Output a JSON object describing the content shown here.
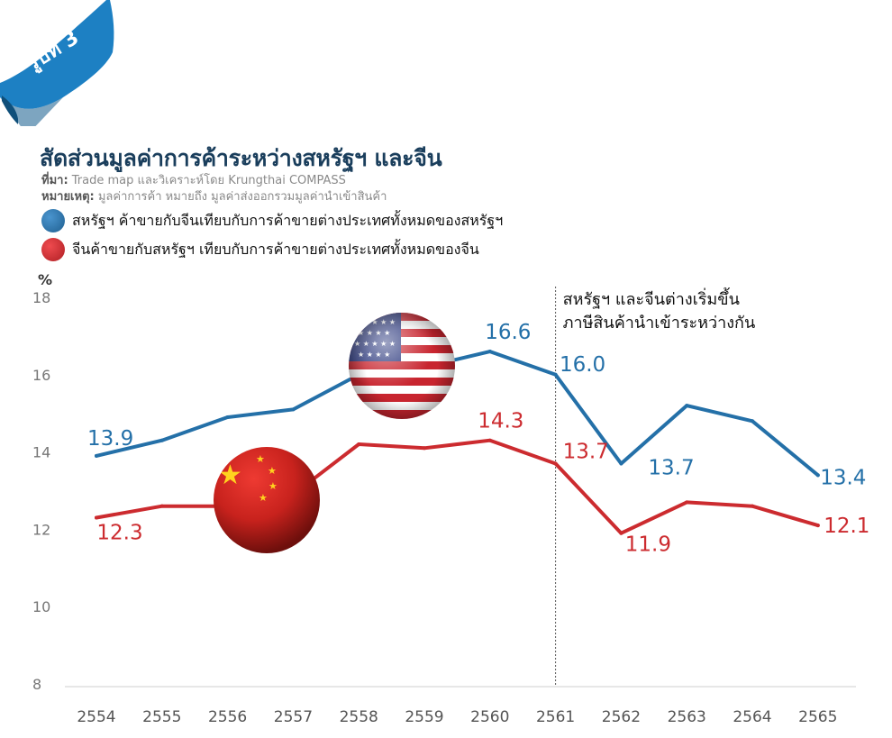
{
  "badge": {
    "label": "รูปที่ 3"
  },
  "header": {
    "title": "สัดส่วนมูลค่าการค้าระหว่างสหรัฐฯ และจีน",
    "source_label": "ที่มา:",
    "source_text": "Trade map และวิเคราะห์โดย Krungthai COMPASS",
    "note_label": "หมายเหตุ:",
    "note_text": "มูลค่าการค้า หมายถึง มูลค่าส่งออกรวมมูลค่านำเข้าสินค้า"
  },
  "colors": {
    "us": "#2470a8",
    "china": "#cc2b2f",
    "badge": "#1d80c3",
    "axis_text": "#777777"
  },
  "chart_data": {
    "type": "line",
    "x": [
      "2554",
      "2555",
      "2556",
      "2557",
      "2558",
      "2559",
      "2560",
      "2561",
      "2562",
      "2563",
      "2564",
      "2565"
    ],
    "ylabel": "%",
    "ylim": [
      8,
      18
    ],
    "yticks": [
      8,
      10,
      12,
      14,
      16,
      18
    ],
    "grid": false,
    "legend_position": "top-left",
    "series": [
      {
        "name": "สหรัฐฯ ค้าขายกับจีนเทียบกับการค้าขายต่างประเทศทั้งหมดของสหรัฐฯ",
        "color": "#2470a8",
        "values": [
          13.9,
          14.3,
          14.9,
          15.1,
          16.0,
          16.2,
          16.6,
          16.0,
          13.7,
          15.2,
          14.8,
          13.4
        ],
        "data_labels": [
          {
            "index": 0,
            "text": "13.9"
          },
          {
            "index": 6,
            "text": "16.6"
          },
          {
            "index": 7,
            "text": "16.0"
          },
          {
            "index": 8,
            "text": "13.7"
          },
          {
            "index": 11,
            "text": "13.4"
          }
        ]
      },
      {
        "name": "จีนค้าขายกับสหรัฐฯ เทียบกับการค้าขายต่างประเทศทั้งหมดของจีน",
        "color": "#cc2b2f",
        "values": [
          12.3,
          12.6,
          12.6,
          12.9,
          14.2,
          14.1,
          14.3,
          13.7,
          11.9,
          12.7,
          12.6,
          12.1
        ],
        "data_labels": [
          {
            "index": 0,
            "text": "12.3"
          },
          {
            "index": 6,
            "text": "14.3"
          },
          {
            "index": 7,
            "text": "13.7"
          },
          {
            "index": 8,
            "text": "11.9"
          },
          {
            "index": 11,
            "text": "12.1"
          }
        ]
      }
    ],
    "annotation": {
      "x": "2561",
      "lines": [
        "สหรัฐฯ และจีนต่างเริ่มขึ้น",
        "ภาษีสินค้านำเข้าระหว่างกัน"
      ]
    }
  }
}
